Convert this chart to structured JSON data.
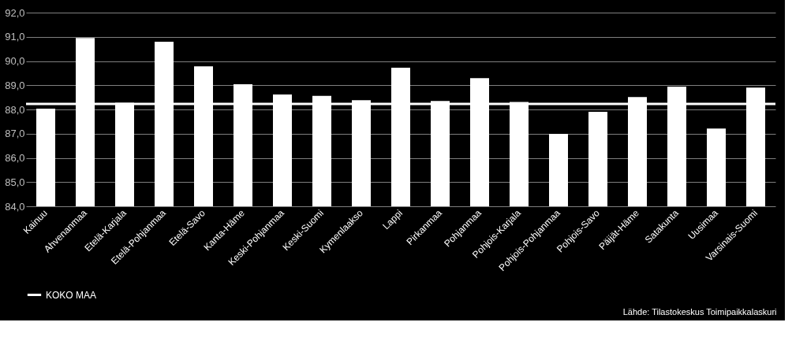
{
  "chart_data": {
    "type": "bar",
    "categories": [
      "Kainuu",
      "Ahvenanmaa",
      "Etelä-Karjala",
      "Etelä-Pohjanmaa",
      "Etelä-Savo",
      "Kanta-Häme",
      "Keski-Pohjanmaa",
      "Keski-Suomi",
      "Kymenlaakso",
      "Lappi",
      "Pirkanmaa",
      "Pohjanmaa",
      "Pohjois-Karjala",
      "Pohjois-Pohjanmaa",
      "Pohjois-Savo",
      "Päijät-Häme",
      "Satakunta",
      "Uusimaa",
      "Varsinais-Suomi"
    ],
    "values": [
      88.03,
      90.95,
      88.28,
      90.8,
      89.78,
      89.04,
      88.62,
      88.56,
      88.38,
      89.72,
      88.35,
      89.29,
      88.31,
      86.99,
      87.9,
      88.51,
      88.94,
      87.21,
      88.9
    ],
    "color": "#ffffff",
    "ylim": [
      84,
      92
    ],
    "yticks": [
      {
        "value": 84,
        "label": "84,0"
      },
      {
        "value": 85,
        "label": "85,0"
      },
      {
        "value": 86,
        "label": "86,0"
      },
      {
        "value": 87,
        "label": "87,0"
      },
      {
        "value": 88,
        "label": "88,0"
      },
      {
        "value": 89,
        "label": "89,0"
      },
      {
        "value": 90,
        "label": "90,0"
      },
      {
        "value": 91,
        "label": "91,0"
      },
      {
        "value": 92,
        "label": "92,0"
      }
    ],
    "grid": "y",
    "ref_lines": [
      {
        "axis": "y",
        "value": 88.23,
        "label": "KOKO MAA",
        "color": "#ffffff"
      }
    ],
    "legend": "bottom",
    "annotations": [
      "Lähde: Tilastokeskus Toimipaikkalaskuri"
    ]
  }
}
